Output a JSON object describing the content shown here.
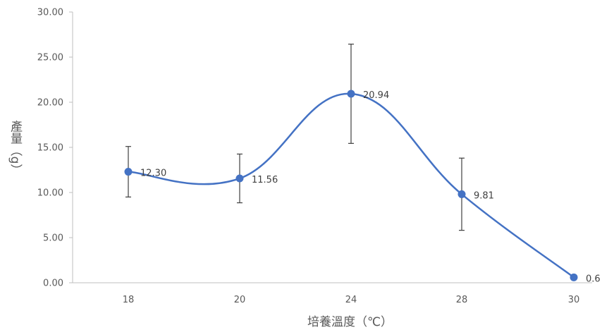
{
  "chart_data": {
    "type": "line",
    "title": "",
    "xlabel": "培養溫度（℃）",
    "ylabel": "產量（g）",
    "categories": [
      "18",
      "20",
      "24",
      "28",
      "30"
    ],
    "series": [
      {
        "values": [
          12.3,
          11.56,
          20.94,
          9.81,
          0.6
        ],
        "error": [
          2.8,
          2.7,
          5.5,
          4.0,
          0
        ],
        "data_labels": [
          "12.30",
          "11.56",
          "20.94",
          "9.81",
          "0.6"
        ],
        "color": "#4472C4"
      }
    ],
    "ylim": [
      0,
      30
    ],
    "yticks": [
      "0.00",
      "5.00",
      "10.00",
      "15.00",
      "20.00",
      "25.00",
      "30.00"
    ],
    "smoothed": true,
    "grid": false,
    "legend": "none",
    "colors": {
      "series": "#4472C4",
      "axis": "#BFBFBF",
      "error_bar": "#404040",
      "text": "#595959"
    }
  }
}
